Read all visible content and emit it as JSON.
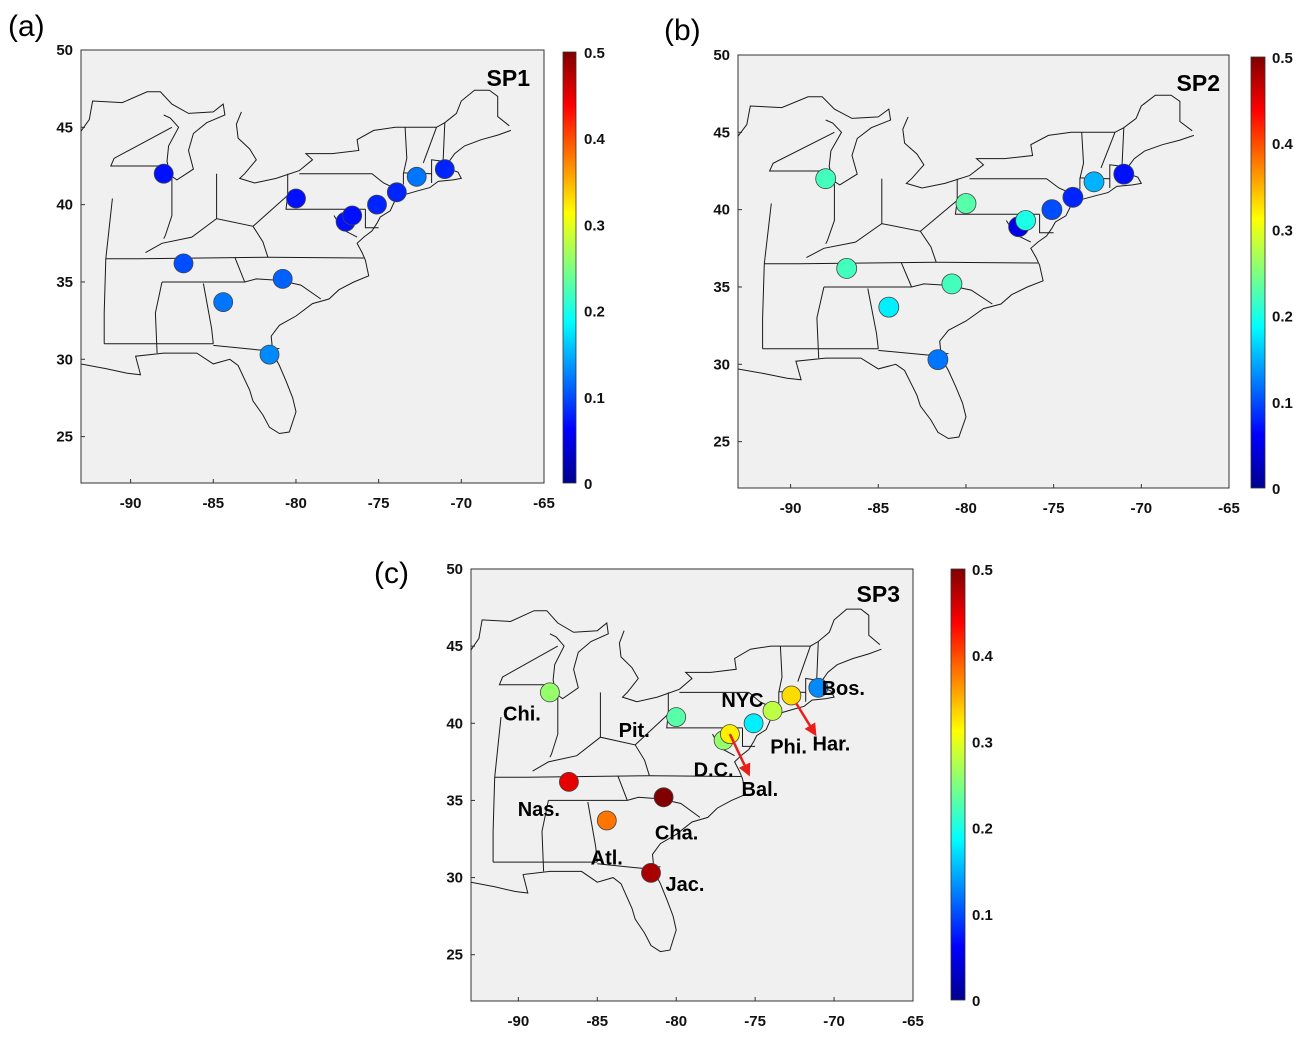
{
  "figure": {
    "panels": [
      {
        "letter": "(a)",
        "map_label": "SP1",
        "colorbar_ticks": [
          "0",
          "0.1",
          "0.2",
          "0.3",
          "0.4",
          "0.5"
        ],
        "x_ticks": [
          "-90",
          "-85",
          "-80",
          "-75",
          "-70",
          "-65"
        ],
        "y_ticks": [
          "25",
          "30",
          "35",
          "40",
          "45",
          "50"
        ]
      },
      {
        "letter": "(b)",
        "map_label": "SP2",
        "colorbar_ticks": [
          "0",
          "0.1",
          "0.2",
          "0.3",
          "0.4",
          "0.5"
        ],
        "x_ticks": [
          "-90",
          "-85",
          "-80",
          "-75",
          "-70",
          "-65"
        ],
        "y_ticks": [
          "25",
          "30",
          "35",
          "40",
          "45",
          "50"
        ]
      },
      {
        "letter": "(c)",
        "map_label": "SP3",
        "colorbar_ticks": [
          "0",
          "0.1",
          "0.2",
          "0.3",
          "0.4",
          "0.5"
        ],
        "x_ticks": [
          "-90",
          "-85",
          "-80",
          "-75",
          "-70",
          "-65"
        ],
        "y_ticks": [
          "25",
          "30",
          "35",
          "40",
          "45",
          "50"
        ],
        "city_labels": [
          "Chi.",
          "Pit.",
          "NYC",
          "Bos.",
          "Phi.",
          "Har.",
          "D.C.",
          "Bal.",
          "Nas.",
          "Cha.",
          "Atl.",
          "Jac."
        ]
      }
    ]
  },
  "chart_data": [
    {
      "type": "scatter",
      "title": "SP1",
      "xlim": [
        -93,
        -65
      ],
      "ylim": [
        22,
        50
      ],
      "color_range": [
        0,
        0.5
      ],
      "colormap": "jet",
      "points": [
        {
          "lon": -88.0,
          "lat": 42.0,
          "value": 0.07
        },
        {
          "lon": -80.0,
          "lat": 40.4,
          "value": 0.07
        },
        {
          "lon": -77.0,
          "lat": 38.9,
          "value": 0.07
        },
        {
          "lon": -76.6,
          "lat": 39.3,
          "value": 0.07
        },
        {
          "lon": -75.1,
          "lat": 40.0,
          "value": 0.08
        },
        {
          "lon": -73.9,
          "lat": 40.8,
          "value": 0.08
        },
        {
          "lon": -72.7,
          "lat": 41.8,
          "value": 0.12
        },
        {
          "lon": -71.0,
          "lat": 42.3,
          "value": 0.08
        },
        {
          "lon": -86.8,
          "lat": 36.2,
          "value": 0.1
        },
        {
          "lon": -80.8,
          "lat": 35.2,
          "value": 0.11
        },
        {
          "lon": -84.4,
          "lat": 33.7,
          "value": 0.12
        },
        {
          "lon": -81.6,
          "lat": 30.3,
          "value": 0.13
        }
      ]
    },
    {
      "type": "scatter",
      "title": "SP2",
      "xlim": [
        -93,
        -65
      ],
      "ylim": [
        22,
        50
      ],
      "color_range": [
        0,
        0.5
      ],
      "colormap": "jet",
      "points": [
        {
          "lon": -88.0,
          "lat": 42.0,
          "value": 0.22
        },
        {
          "lon": -80.0,
          "lat": 40.4,
          "value": 0.23
        },
        {
          "lon": -77.0,
          "lat": 38.9,
          "value": 0.05
        },
        {
          "lon": -76.6,
          "lat": 39.3,
          "value": 0.2
        },
        {
          "lon": -75.1,
          "lat": 40.0,
          "value": 0.1
        },
        {
          "lon": -73.9,
          "lat": 40.8,
          "value": 0.08
        },
        {
          "lon": -72.7,
          "lat": 41.8,
          "value": 0.15
        },
        {
          "lon": -71.0,
          "lat": 42.3,
          "value": 0.07
        },
        {
          "lon": -86.8,
          "lat": 36.2,
          "value": 0.22
        },
        {
          "lon": -80.8,
          "lat": 35.2,
          "value": 0.22
        },
        {
          "lon": -84.4,
          "lat": 33.7,
          "value": 0.18
        },
        {
          "lon": -81.6,
          "lat": 30.3,
          "value": 0.12
        }
      ]
    },
    {
      "type": "scatter",
      "title": "SP3",
      "xlim": [
        -93,
        -65
      ],
      "ylim": [
        22,
        50
      ],
      "color_range": [
        0,
        0.5
      ],
      "colormap": "jet",
      "points": [
        {
          "name": "Chi.",
          "lon": -88.0,
          "lat": 42.0,
          "value": 0.26
        },
        {
          "name": "Pit.",
          "lon": -80.0,
          "lat": 40.4,
          "value": 0.23
        },
        {
          "name": "D.C.",
          "lon": -77.0,
          "lat": 38.9,
          "value": 0.26
        },
        {
          "name": "Bal.",
          "lon": -76.6,
          "lat": 39.3,
          "value": 0.32
        },
        {
          "name": "Phi.",
          "lon": -75.1,
          "lat": 40.0,
          "value": 0.18
        },
        {
          "name": "NYC",
          "lon": -73.9,
          "lat": 40.8,
          "value": 0.28
        },
        {
          "name": "Har.",
          "lon": -72.7,
          "lat": 41.8,
          "value": 0.33
        },
        {
          "name": "Bos.",
          "lon": -71.0,
          "lat": 42.3,
          "value": 0.13
        },
        {
          "name": "Nas.",
          "lon": -86.8,
          "lat": 36.2,
          "value": 0.45
        },
        {
          "name": "Cha.",
          "lon": -80.8,
          "lat": 35.2,
          "value": 0.5
        },
        {
          "name": "Atl.",
          "lon": -84.4,
          "lat": 33.7,
          "value": 0.38
        },
        {
          "name": "Jac.",
          "lon": -81.6,
          "lat": 30.3,
          "value": 0.48
        }
      ]
    }
  ]
}
